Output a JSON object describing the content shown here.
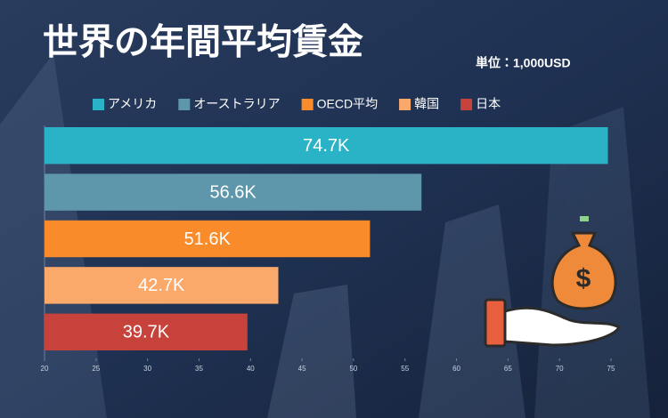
{
  "chart_data": {
    "type": "bar",
    "orientation": "horizontal",
    "title": "世界の年間平均賃金",
    "subtitle": "単位：1,000USD",
    "categories": [
      "アメリカ",
      "オーストラリア",
      "OECD平均",
      "韓国",
      "日本"
    ],
    "colors": [
      "#2ab3c6",
      "#5e97ab",
      "#f98b2b",
      "#fba96a",
      "#c7423a"
    ],
    "values": [
      74.7,
      56.6,
      51.6,
      42.7,
      39.7
    ],
    "value_labels": [
      "74.7K",
      "56.6K",
      "51.6K",
      "42.7K",
      "39.7K"
    ],
    "xlim": [
      20,
      75
    ],
    "xticks": [
      20,
      25,
      30,
      35,
      40,
      45,
      50,
      55,
      60,
      65,
      70,
      75
    ],
    "legend": "top"
  }
}
